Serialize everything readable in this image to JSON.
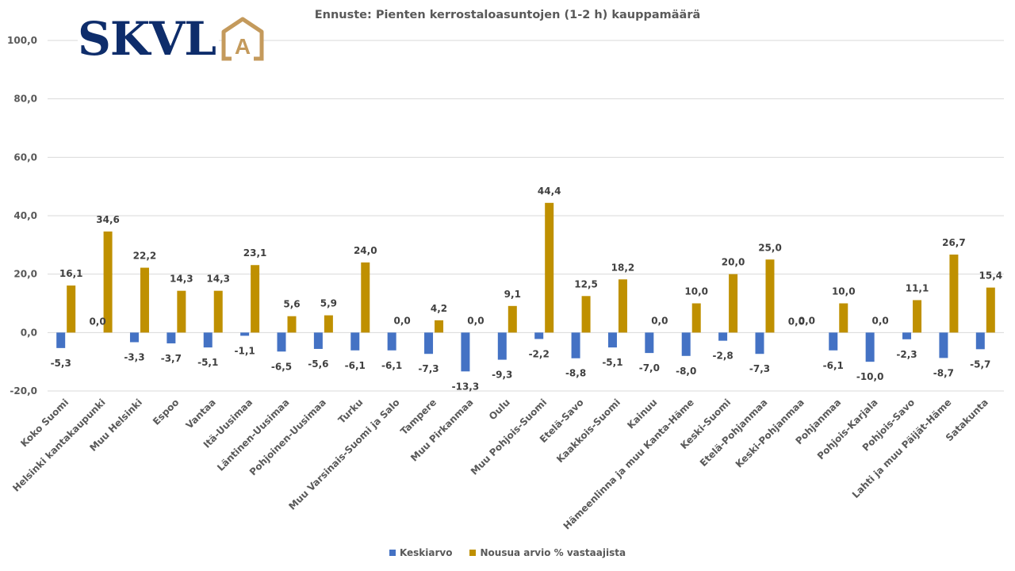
{
  "logo": {
    "text": "SKVL",
    "mark": "A",
    "text_color": "#0e2d6b",
    "mark_color": "#c49a5c"
  },
  "chart_data": {
    "type": "bar",
    "title": "Ennuste: Pienten kerrostaloasuntojen (1-2 h) kauppamäärä",
    "xlabel": "",
    "ylabel": "",
    "ylim": [
      -20,
      100
    ],
    "yticks": [
      -20,
      0,
      20,
      40,
      60,
      80,
      100
    ],
    "ytick_labels": [
      "-20,0",
      "0,0",
      "20,0",
      "40,0",
      "60,0",
      "80,0",
      "100,0"
    ],
    "grid": true,
    "legend_position": "bottom",
    "categories": [
      "Koko Suomi",
      "Helsinki kantakaupunki",
      "Muu Helsinki",
      "Espoo",
      "Vantaa",
      "Itä-Uusimaa",
      "Läntinen-Uusimaa",
      "Pohjoinen-Uusimaa",
      "Turku",
      "Muu Varsinais-Suomi ja Salo",
      "Tampere",
      "Muu Pirkanmaa",
      "Oulu",
      "Muu Pohjois-Suomi",
      "Etelä-Savo",
      "Kaakkois-Suomi",
      "Kainuu",
      "Hämeenlinna ja muu Kanta-Häme",
      "Keski-Suomi",
      "Etelä-Pohjanmaa",
      "Keski-Pohjanmaa",
      "Pohjanmaa",
      "Pohjois-Karjala",
      "Pohjois-Savo",
      "Lahti ja muu Päijät-Häme",
      "Satakunta"
    ],
    "series": [
      {
        "name": "Keskiarvo",
        "color": "#4472c4",
        "values": [
          -5.3,
          0.0,
          -3.3,
          -3.7,
          -5.1,
          -1.1,
          -6.5,
          -5.6,
          -6.1,
          -6.1,
          -7.3,
          -13.3,
          -9.3,
          -2.2,
          -8.8,
          -5.1,
          -7.0,
          -8.0,
          -2.8,
          -7.3,
          0.0,
          -6.1,
          -10.0,
          -2.3,
          -8.7,
          -5.7
        ],
        "labels": [
          "-5,3",
          "0,0",
          "-3,3",
          "-3,7",
          "-5,1",
          "-1,1",
          "-6,5",
          "-5,6",
          "-6,1",
          "-6,1",
          "-7,3",
          "-13,3",
          "-9,3",
          "-2,2",
          "-8,8",
          "-5,1",
          "-7,0",
          "-8,0",
          "-2,8",
          "-7,3",
          "0,0",
          "-6,1",
          "-10,0",
          "-2,3",
          "-8,7",
          "-5,7"
        ]
      },
      {
        "name": "Nousua arvio % vastaajista",
        "color": "#bf9000",
        "values": [
          16.1,
          34.6,
          22.2,
          14.3,
          14.3,
          23.1,
          5.6,
          5.9,
          24.0,
          0.0,
          4.2,
          0.0,
          9.1,
          44.4,
          12.5,
          18.2,
          0.0,
          10.0,
          20.0,
          25.0,
          0.0,
          10.0,
          0.0,
          11.1,
          26.7,
          15.4
        ],
        "labels": [
          "16,1",
          "34,6",
          "22,2",
          "14,3",
          "14,3",
          "23,1",
          "5,6",
          "5,9",
          "24,0",
          "0,0",
          "4,2",
          "0,0",
          "9,1",
          "44,4",
          "12,5",
          "18,2",
          "0,0",
          "10,0",
          "20,0",
          "25,0",
          "0,0",
          "10,0",
          "0,0",
          "11,1",
          "26,7",
          "15,4"
        ]
      }
    ]
  }
}
